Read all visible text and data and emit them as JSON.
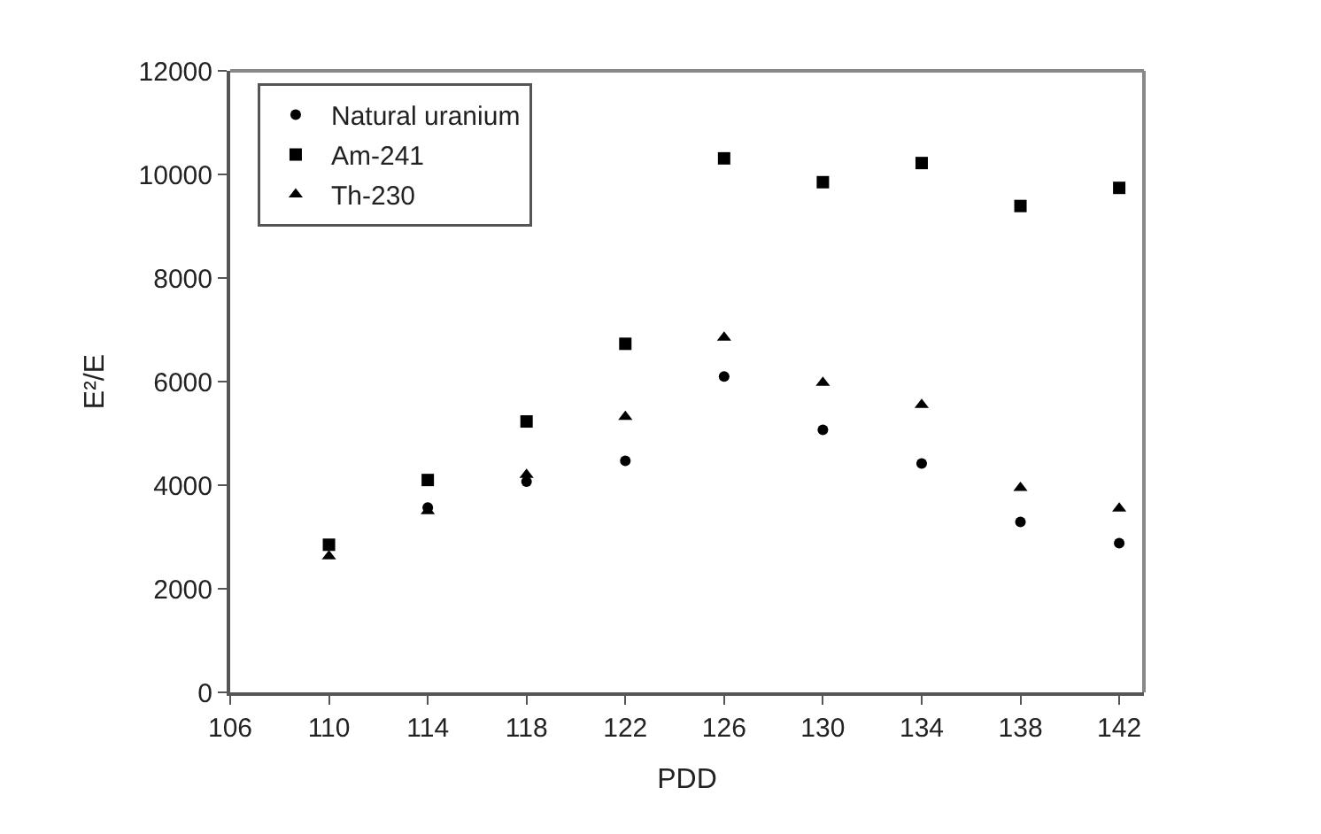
{
  "chart_data": {
    "type": "scatter",
    "xlabel": "PDD",
    "ylabel": "E²/E",
    "x": [
      110,
      114,
      118,
      122,
      126,
      130,
      134,
      138,
      142
    ],
    "xlim": [
      106,
      143
    ],
    "xticks": [
      106,
      110,
      114,
      118,
      122,
      126,
      130,
      134,
      138,
      142
    ],
    "ylim": [
      0,
      12000
    ],
    "yticks": [
      0,
      2000,
      4000,
      6000,
      8000,
      10000,
      12000
    ],
    "legend": "top left",
    "series": [
      {
        "name": "Natural uranium",
        "color": "#000000",
        "marker": "circle",
        "values": [
          null,
          3570,
          4070,
          4470,
          6100,
          5070,
          4420,
          3290,
          2880
        ]
      },
      {
        "name": "Am-241",
        "color": "#000000",
        "marker": "square",
        "values": [
          2850,
          4100,
          5230,
          6730,
          10310,
          9850,
          10220,
          9390,
          9740
        ]
      },
      {
        "name": "Th-230",
        "color": "#000000",
        "marker": "triangle",
        "values": [
          2630,
          3500,
          4200,
          5320,
          6850,
          5980,
          5550,
          3950,
          3550
        ]
      }
    ]
  }
}
